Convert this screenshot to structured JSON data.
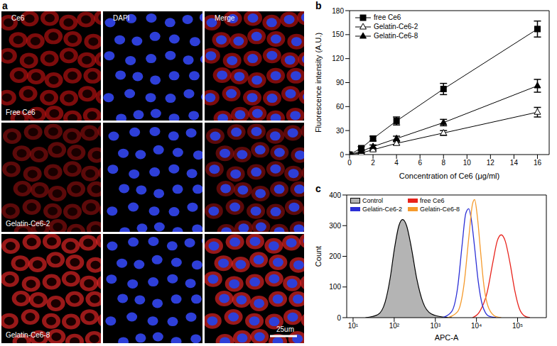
{
  "image_panel": {
    "panel_label": "a",
    "type": "image_grid",
    "columns": [
      "Ce6",
      "DAPI",
      "Merge"
    ],
    "rows": [
      "Free Ce6",
      "Gelatin-Ce6-2",
      "Gelatin-Ce6-8"
    ],
    "scale_bar": "25um"
  },
  "chart_data": [
    {
      "panel_label": "b",
      "type": "line",
      "x_label": "Concentration of Ce6 (μg/ml)",
      "y_label": "Fluorescence intensity (A.U.)",
      "x": [
        0,
        1,
        2,
        4,
        8,
        16
      ],
      "xlim": [
        0,
        17
      ],
      "xticks": [
        0,
        2,
        4,
        6,
        8,
        10,
        12,
        14,
        16
      ],
      "ylim": [
        0,
        180
      ],
      "yticks": [
        0,
        30,
        60,
        90,
        120,
        150,
        180
      ],
      "legend": "upper left",
      "series": [
        {
          "name": "free Ce6",
          "color": "#000000",
          "marker": "square",
          "values": [
            0,
            8,
            20,
            42,
            82,
            157
          ],
          "errors": [
            0,
            2,
            3,
            5,
            7,
            10
          ]
        },
        {
          "name": "Gelatin-Ce6-2",
          "color": "#000000",
          "marker": "triangle_open",
          "values": [
            0,
            2,
            6,
            14,
            27,
            53
          ],
          "errors": [
            0,
            1,
            1,
            2,
            3,
            6
          ]
        },
        {
          "name": "Gelatin-Ce6-8",
          "color": "#000000",
          "marker": "triangle",
          "values": [
            0,
            4,
            10,
            20,
            40,
            86
          ],
          "errors": [
            0,
            1,
            2,
            3,
            4,
            8
          ]
        }
      ]
    },
    {
      "panel_label": "c",
      "type": "line",
      "x_label": "APC-A",
      "y_label": "Count",
      "log": "x",
      "xlim": [
        7,
        500000
      ],
      "xticks": [
        {
          "value": 10,
          "label": "10¹"
        },
        {
          "value": 100,
          "label": "10²"
        },
        {
          "value": 1000,
          "label": "10³"
        },
        {
          "value": 10000,
          "label": "10⁴"
        },
        {
          "value": 100000,
          "label": "10⁵"
        }
      ],
      "ylim": [
        0,
        400
      ],
      "yticks": [
        0,
        100,
        200,
        300,
        400
      ],
      "legend": "upper left",
      "series": [
        {
          "name": "Control",
          "type": "area",
          "color": "#000000",
          "x": [
            20,
            40,
            60,
            80,
            100,
            130,
            160,
            200,
            260,
            350,
            500,
            800,
            1500,
            2500
          ],
          "values": [
            0,
            10,
            50,
            130,
            220,
            300,
            320,
            300,
            230,
            130,
            50,
            12,
            2,
            0
          ]
        },
        {
          "name": "free Ce6",
          "type": "line",
          "color": "#e8231c",
          "x": [
            8000,
            12000,
            18000,
            25000,
            32000,
            40000,
            50000,
            65000,
            85000,
            110000,
            150000,
            200000
          ],
          "values": [
            0,
            20,
            80,
            180,
            250,
            270,
            250,
            180,
            90,
            30,
            5,
            0
          ]
        },
        {
          "name": "Gelatin-Ce6-2",
          "type": "line",
          "color": "#2b2fd6",
          "x": [
            1500,
            2500,
            3500,
            4500,
            5500,
            6500,
            7500,
            9000,
            11000,
            14000,
            20000,
            30000
          ],
          "values": [
            0,
            20,
            100,
            240,
            340,
            355,
            320,
            230,
            120,
            40,
            5,
            0
          ]
        },
        {
          "name": "Gelatin-Ce6-8",
          "type": "line",
          "color": "#f59a2c",
          "x": [
            2000,
            3500,
            5000,
            6500,
            8000,
            9000,
            10500,
            12500,
            15000,
            20000,
            30000,
            40000
          ],
          "values": [
            0,
            20,
            110,
            260,
            370,
            385,
            330,
            220,
            110,
            30,
            3,
            0
          ]
        }
      ]
    }
  ]
}
